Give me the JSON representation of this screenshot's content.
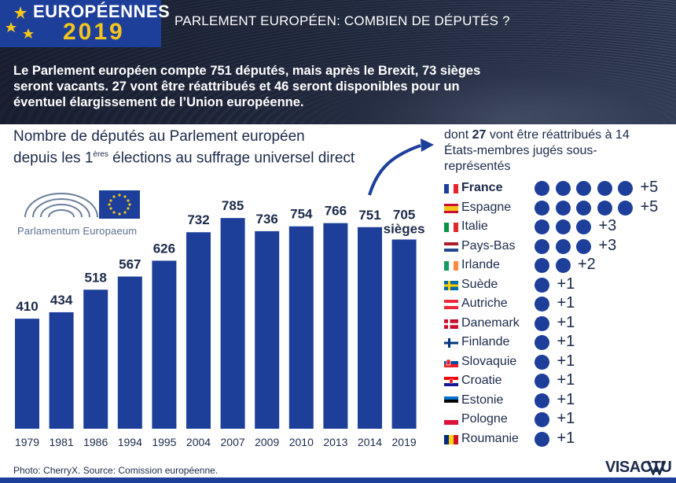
{
  "header": {
    "badge_line1": "EUROPÉENNES",
    "badge_line2": "2019",
    "title": "PARLEMENT EUROPÉEN: COMBIEN DE DÉPUTÉS ?",
    "intro": "Le Parlement européen compte 751 députés, mais après le Brexit, 73 sièges seront vacants. 27 vont être réattribués et 46 seront disponibles pour un éventuel élargissement de l’Union européenne."
  },
  "chart_title": {
    "line1": "Nombre de députés au Parlement européen",
    "line2_pre": "depuis les 1",
    "line2_sup": "ères",
    "line2_post": " élections au suffrage universel direct"
  },
  "logo": {
    "text": "Parlamentum Europaeum"
  },
  "chart_data": {
    "type": "bar",
    "categories": [
      "1979",
      "1981",
      "1986",
      "1994",
      "1995",
      "2004",
      "2007",
      "2009",
      "2010",
      "2013",
      "2014",
      "2019"
    ],
    "values": [
      410,
      434,
      518,
      567,
      626,
      732,
      785,
      736,
      754,
      766,
      751,
      705
    ],
    "value_labels": [
      "410",
      "434",
      "518",
      "567",
      "626",
      "732",
      "785",
      "736",
      "754",
      "766",
      "751",
      "705"
    ],
    "last_label_suffix": "sièges",
    "title": "",
    "xlabel": "",
    "ylabel": "",
    "color": "#1d3f9a"
  },
  "reallocation": {
    "head_pre": "dont ",
    "head_num": "27",
    "head_post": " vont être réattribués à 14 États-membres jugés sous-représentés",
    "countries": [
      {
        "name": "France",
        "seats": 5,
        "label": "+5",
        "bold": true,
        "flag": "fr"
      },
      {
        "name": "Espagne",
        "seats": 5,
        "label": "+5",
        "bold": false,
        "flag": "es"
      },
      {
        "name": "Italie",
        "seats": 3,
        "label": "+3",
        "bold": false,
        "flag": "it"
      },
      {
        "name": "Pays-Bas",
        "seats": 3,
        "label": "+3",
        "bold": false,
        "flag": "nl"
      },
      {
        "name": "Irlande",
        "seats": 2,
        "label": "+2",
        "bold": false,
        "flag": "ie"
      },
      {
        "name": "Suède",
        "seats": 1,
        "label": "+1",
        "bold": false,
        "flag": "se"
      },
      {
        "name": "Autriche",
        "seats": 1,
        "label": "+1",
        "bold": false,
        "flag": "at"
      },
      {
        "name": "Danemark",
        "seats": 1,
        "label": "+1",
        "bold": false,
        "flag": "dk"
      },
      {
        "name": "Finlande",
        "seats": 1,
        "label": "+1",
        "bold": false,
        "flag": "fi"
      },
      {
        "name": "Slovaquie",
        "seats": 1,
        "label": "+1",
        "bold": false,
        "flag": "sk"
      },
      {
        "name": "Croatie",
        "seats": 1,
        "label": "+1",
        "bold": false,
        "flag": "hr"
      },
      {
        "name": "Estonie",
        "seats": 1,
        "label": "+1",
        "bold": false,
        "flag": "ee"
      },
      {
        "name": "Pologne",
        "seats": 1,
        "label": "+1",
        "bold": false,
        "flag": "pl"
      },
      {
        "name": "Roumanie",
        "seats": 1,
        "label": "+1",
        "bold": false,
        "flag": "ro"
      }
    ]
  },
  "footer": {
    "source": "Photo: CherryX. Source: Comission européenne.",
    "brand": "VISACTU"
  },
  "colors": {
    "accent": "#1d3f9a",
    "gold": "#f4c51b",
    "text": "#1b2a4a"
  }
}
